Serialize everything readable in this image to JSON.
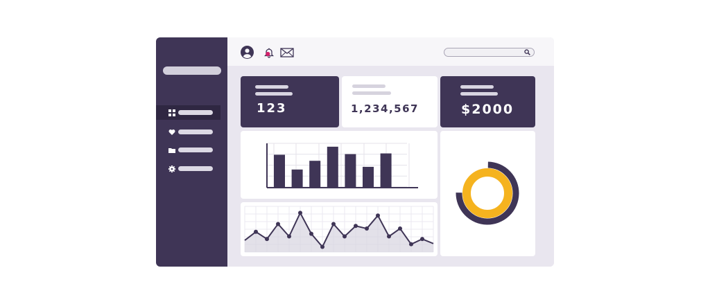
{
  "stats": {
    "card1": {
      "value": "123"
    },
    "card2": {
      "value": "1,234,567"
    },
    "card3": {
      "value": "$2000"
    }
  },
  "sidebar": {
    "items": [
      {
        "icon": "dashboard-grid-icon",
        "active": true
      },
      {
        "icon": "heart-icon",
        "active": false
      },
      {
        "icon": "folder-icon",
        "active": false
      },
      {
        "icon": "gear-icon",
        "active": false
      }
    ]
  },
  "header": {
    "icons": [
      "user-avatar-icon",
      "bell-icon",
      "mail-icon"
    ],
    "search": {
      "placeholder": "",
      "icon": "search-icon"
    }
  },
  "colors": {
    "primary": "#3f3556",
    "accent": "#f5b31f",
    "background": "#e9e6ef",
    "card": "#ffffff"
  },
  "chart_data": [
    {
      "type": "bar",
      "values": [
        48,
        26,
        39,
        60,
        49,
        30,
        50
      ],
      "ylim": [
        0,
        65
      ]
    },
    {
      "type": "line",
      "values": [
        18,
        31,
        20,
        43,
        24,
        60,
        28,
        8,
        43,
        24,
        40,
        36,
        56,
        24,
        36,
        12,
        20,
        13
      ],
      "ylim": [
        0,
        70
      ]
    },
    {
      "type": "pie",
      "values": [
        75,
        25
      ],
      "colors": [
        "#f5b31f",
        "#3f3556"
      ]
    }
  ]
}
